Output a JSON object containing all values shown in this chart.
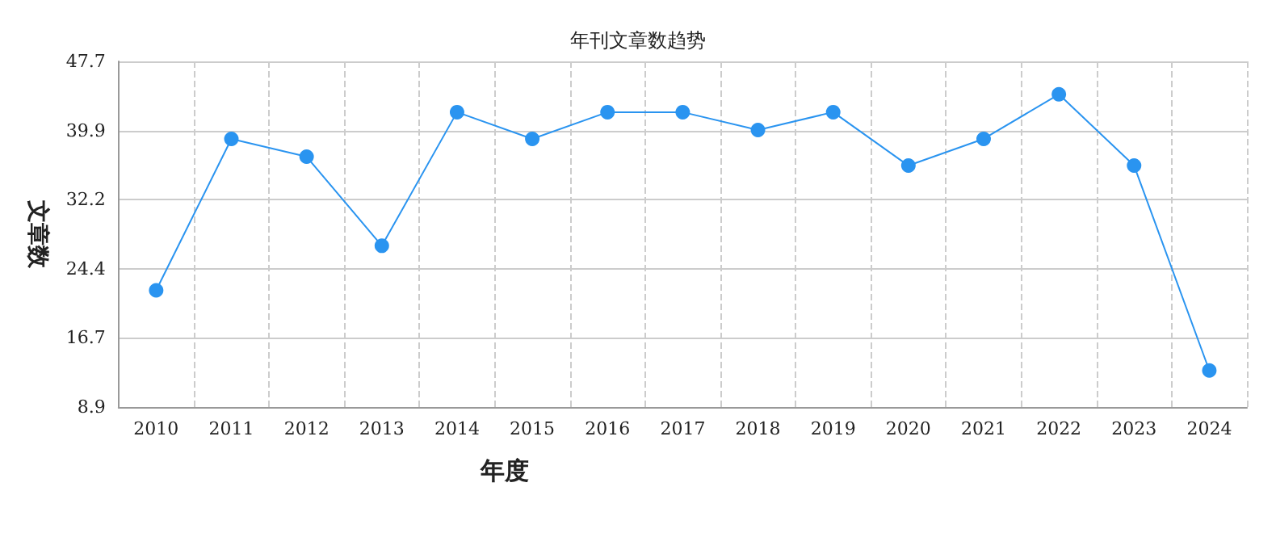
{
  "chart_data": {
    "type": "line",
    "title": "年刊文章数趋势",
    "xlabel": "年度",
    "ylabel": "文章数",
    "categories": [
      "2010",
      "2011",
      "2012",
      "2013",
      "2014",
      "2015",
      "2016",
      "2017",
      "2018",
      "2019",
      "2020",
      "2021",
      "2022",
      "2023",
      "2024"
    ],
    "series": [
      {
        "color": "#2a94f0",
        "values": [
          22,
          39,
          37,
          27,
          42,
          39,
          42,
          42,
          40,
          42,
          36,
          39,
          44,
          36,
          13
        ]
      }
    ],
    "ylim": [
      8.9,
      47.7
    ],
    "yticks": [
      8.9,
      16.7,
      24.4,
      32.2,
      39.9,
      47.7
    ],
    "grid": true,
    "marker": "circle",
    "line_style": "solid"
  }
}
